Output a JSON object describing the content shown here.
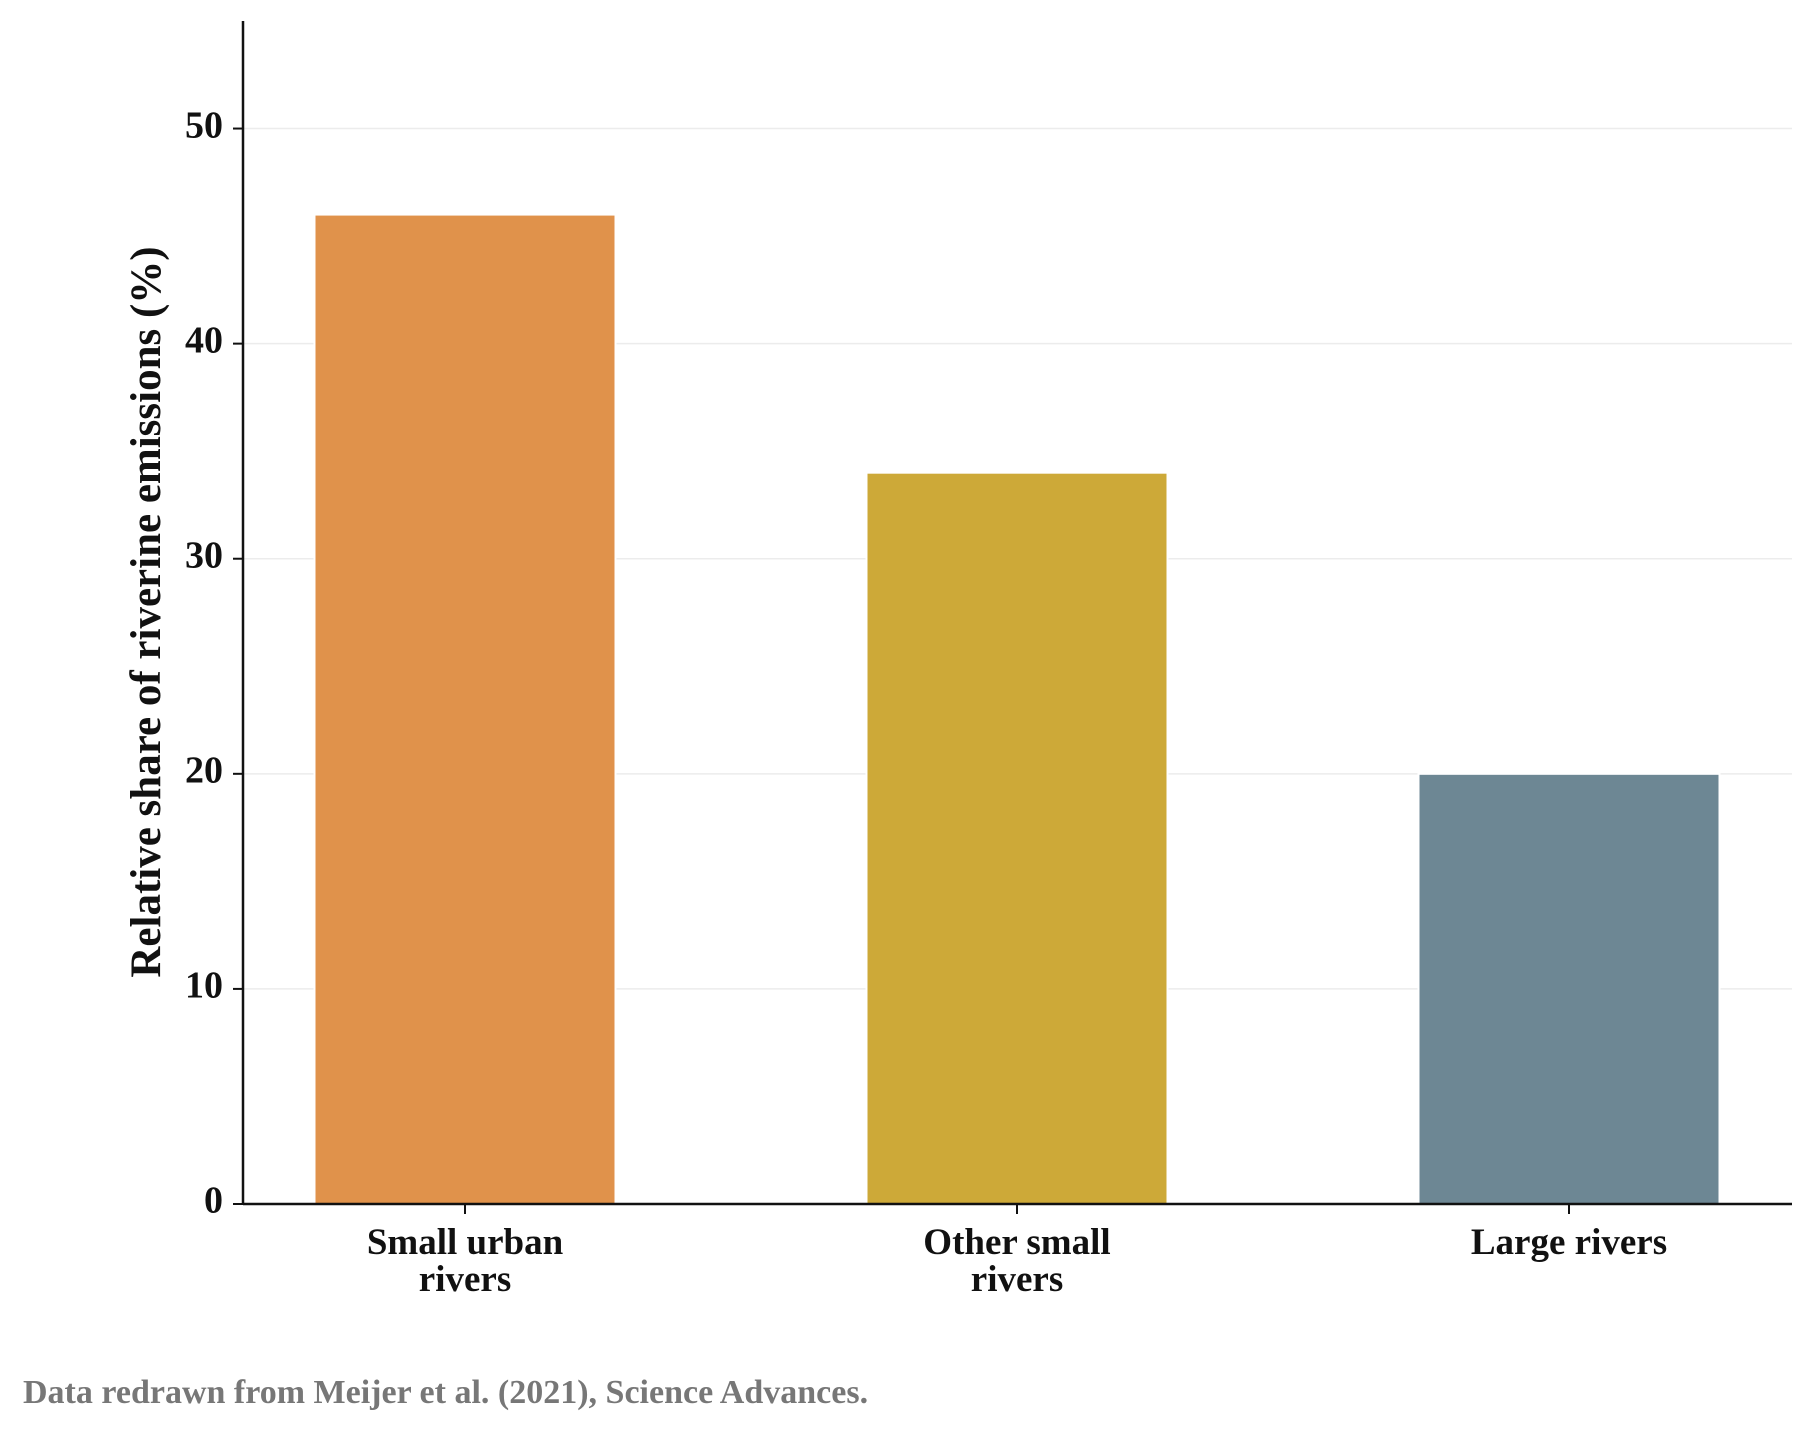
{
  "chart_data": {
    "type": "bar",
    "y_label": "Relative share of riverine emissions (%)",
    "categories": [
      "Small urban\nrivers",
      "Other small\nrivers",
      "Large rivers"
    ],
    "values": [
      46,
      34,
      20
    ],
    "colors": [
      "#e0924b",
      "#cda938",
      "#6d8794"
    ],
    "ylim": [
      0,
      55
    ],
    "yticks": [
      0,
      10,
      20,
      30,
      40,
      50
    ],
    "grid": true,
    "note": "Data redrawn from Meijer et al. (2021), Science Advances."
  }
}
